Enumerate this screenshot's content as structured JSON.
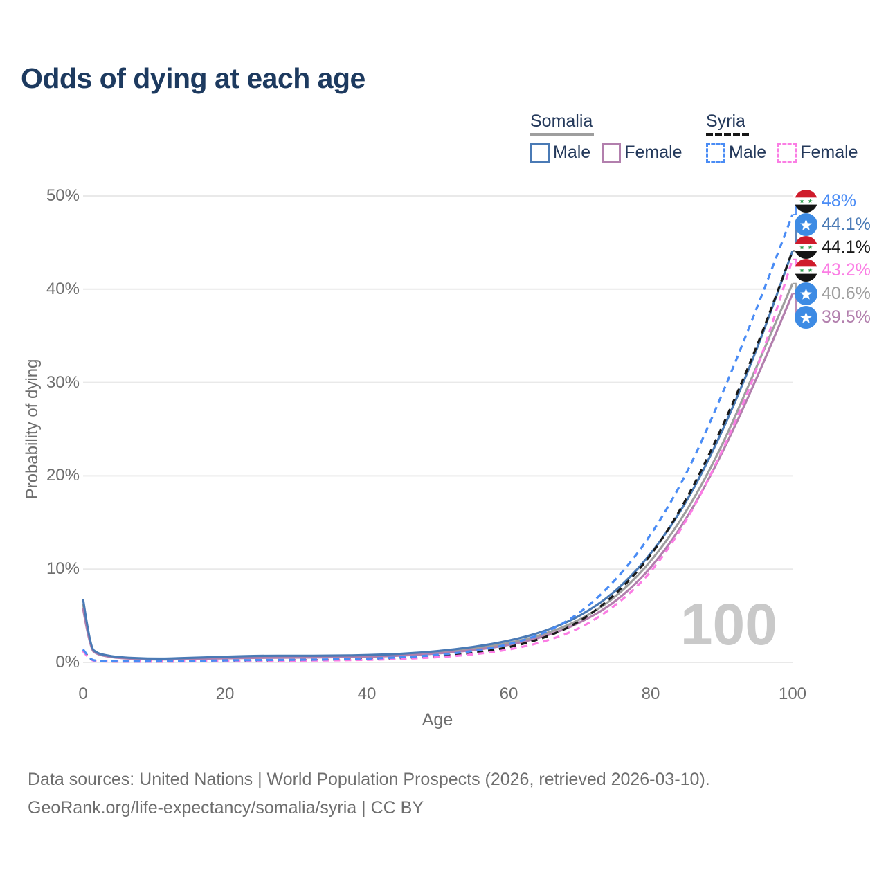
{
  "title": "Odds of dying at each age",
  "legend": {
    "somalia": {
      "name": "Somalia",
      "underline_style": "solid",
      "underline_color": "#9e9e9e",
      "male_label": "Male",
      "female_label": "Female",
      "male_color": "#4a7ab5",
      "female_color": "#b27fad"
    },
    "syria": {
      "name": "Syria",
      "underline_style": "dashed",
      "underline_color": "#161616",
      "male_label": "Male",
      "female_label": "Female",
      "male_color": "#4a8cf5",
      "female_color": "#fb7de4"
    }
  },
  "axes": {
    "xlabel": "Age",
    "ylabel": "Probability of dying",
    "y_ticks": [
      "0%",
      "10%",
      "20%",
      "30%",
      "40%",
      "50%"
    ],
    "x_ticks": [
      "0",
      "20",
      "40",
      "60",
      "80",
      "100"
    ]
  },
  "watermark": "100",
  "chart_data": {
    "type": "line",
    "title": "Odds of dying at each age",
    "xlabel": "Age",
    "ylabel": "Probability of dying",
    "xlim": [
      0,
      100
    ],
    "ylim": [
      0,
      50
    ],
    "grid": "horizontal",
    "legend_position": "top-right",
    "unit": "percent probability of dying",
    "x": [
      0,
      1,
      2,
      3,
      5,
      10,
      15,
      20,
      25,
      30,
      35,
      40,
      45,
      50,
      55,
      60,
      65,
      70,
      75,
      80,
      85,
      90,
      95,
      100
    ],
    "series": [
      {
        "name": "Somalia Total",
        "country": "Somalia",
        "color": "#9e9e9e",
        "style": "solid",
        "end_value": 40.6,
        "end_label": "40.6%",
        "label_row": 4,
        "values": [
          6.3,
          1.5,
          0.95,
          0.75,
          0.5,
          0.33,
          0.42,
          0.52,
          0.6,
          0.62,
          0.63,
          0.68,
          0.82,
          1.05,
          1.45,
          2.05,
          3.0,
          4.5,
          6.9,
          10.7,
          16.0,
          23.0,
          31.8,
          40.6
        ]
      },
      {
        "name": "Somalia Female",
        "country": "Somalia",
        "color": "#b27fad",
        "style": "solid",
        "end_value": 39.5,
        "end_label": "39.5%",
        "label_row": 5,
        "values": [
          5.8,
          1.4,
          0.9,
          0.7,
          0.45,
          0.3,
          0.37,
          0.45,
          0.5,
          0.52,
          0.55,
          0.6,
          0.73,
          0.95,
          1.3,
          1.85,
          2.75,
          4.2,
          6.4,
          10.0,
          15.2,
          22.2,
          30.5,
          39.5
        ]
      },
      {
        "name": "Somalia Male",
        "country": "Somalia",
        "color": "#4a7ab5",
        "style": "solid",
        "end_value": 44.1,
        "end_label": "44.1%",
        "label_row": 1,
        "values": [
          6.8,
          1.6,
          1.0,
          0.8,
          0.55,
          0.38,
          0.48,
          0.62,
          0.72,
          0.72,
          0.72,
          0.78,
          0.92,
          1.2,
          1.65,
          2.3,
          3.3,
          4.9,
          7.5,
          11.5,
          17.0,
          24.5,
          33.5,
          44.1
        ]
      },
      {
        "name": "Syria Total",
        "country": "Syria",
        "color": "#1a1a1a",
        "style": "dashed",
        "end_value": 44.1,
        "end_label": "44.1%",
        "label_row": 2,
        "values": [
          1.3,
          0.26,
          0.15,
          0.12,
          0.1,
          0.09,
          0.13,
          0.18,
          0.2,
          0.23,
          0.27,
          0.33,
          0.46,
          0.67,
          1.0,
          1.6,
          2.6,
          4.3,
          7.2,
          11.3,
          17.3,
          25.0,
          33.8,
          44.1
        ]
      },
      {
        "name": "Syria Female",
        "country": "Syria",
        "color": "#fb7de4",
        "style": "dashed",
        "end_value": 43.2,
        "end_label": "43.2%",
        "label_row": 3,
        "values": [
          1.2,
          0.23,
          0.13,
          0.11,
          0.09,
          0.08,
          0.11,
          0.14,
          0.16,
          0.19,
          0.22,
          0.27,
          0.38,
          0.55,
          0.85,
          1.35,
          2.2,
          3.6,
          6.0,
          9.5,
          15.0,
          22.4,
          31.2,
          43.2
        ]
      },
      {
        "name": "Syria Male",
        "country": "Syria",
        "color": "#4a8cf5",
        "style": "dashed",
        "end_value": 48.0,
        "end_label": "48%",
        "label_row": 0,
        "values": [
          1.4,
          0.3,
          0.18,
          0.14,
          0.11,
          0.1,
          0.16,
          0.22,
          0.25,
          0.28,
          0.32,
          0.4,
          0.55,
          0.8,
          1.2,
          1.9,
          3.1,
          5.2,
          8.7,
          13.5,
          20.0,
          28.5,
          38.0,
          48.0
        ]
      }
    ]
  },
  "end_labels": [
    {
      "value": "48%",
      "color": "#4a8cf5",
      "flag": "syria"
    },
    {
      "value": "44.1%",
      "color": "#4a7ab5",
      "flag": "somalia"
    },
    {
      "value": "44.1%",
      "color": "#1a1a1a",
      "flag": "syria"
    },
    {
      "value": "43.2%",
      "color": "#fb7de4",
      "flag": "syria"
    },
    {
      "value": "40.6%",
      "color": "#9e9e9e",
      "flag": "somalia"
    },
    {
      "value": "39.5%",
      "color": "#b27fad",
      "flag": "somalia"
    }
  ],
  "flag_colors": {
    "somalia_blue": "#3d8be4",
    "syria_red": "#cf1b2b",
    "syria_green": "#2f9e4f",
    "syria_black": "#151515"
  },
  "footer": {
    "line1": "Data sources: United Nations | World Population Prospects (2026, retrieved 2026-03-10).",
    "line2": "GeoRank.org/life-expectancy/somalia/syria | CC BY"
  }
}
